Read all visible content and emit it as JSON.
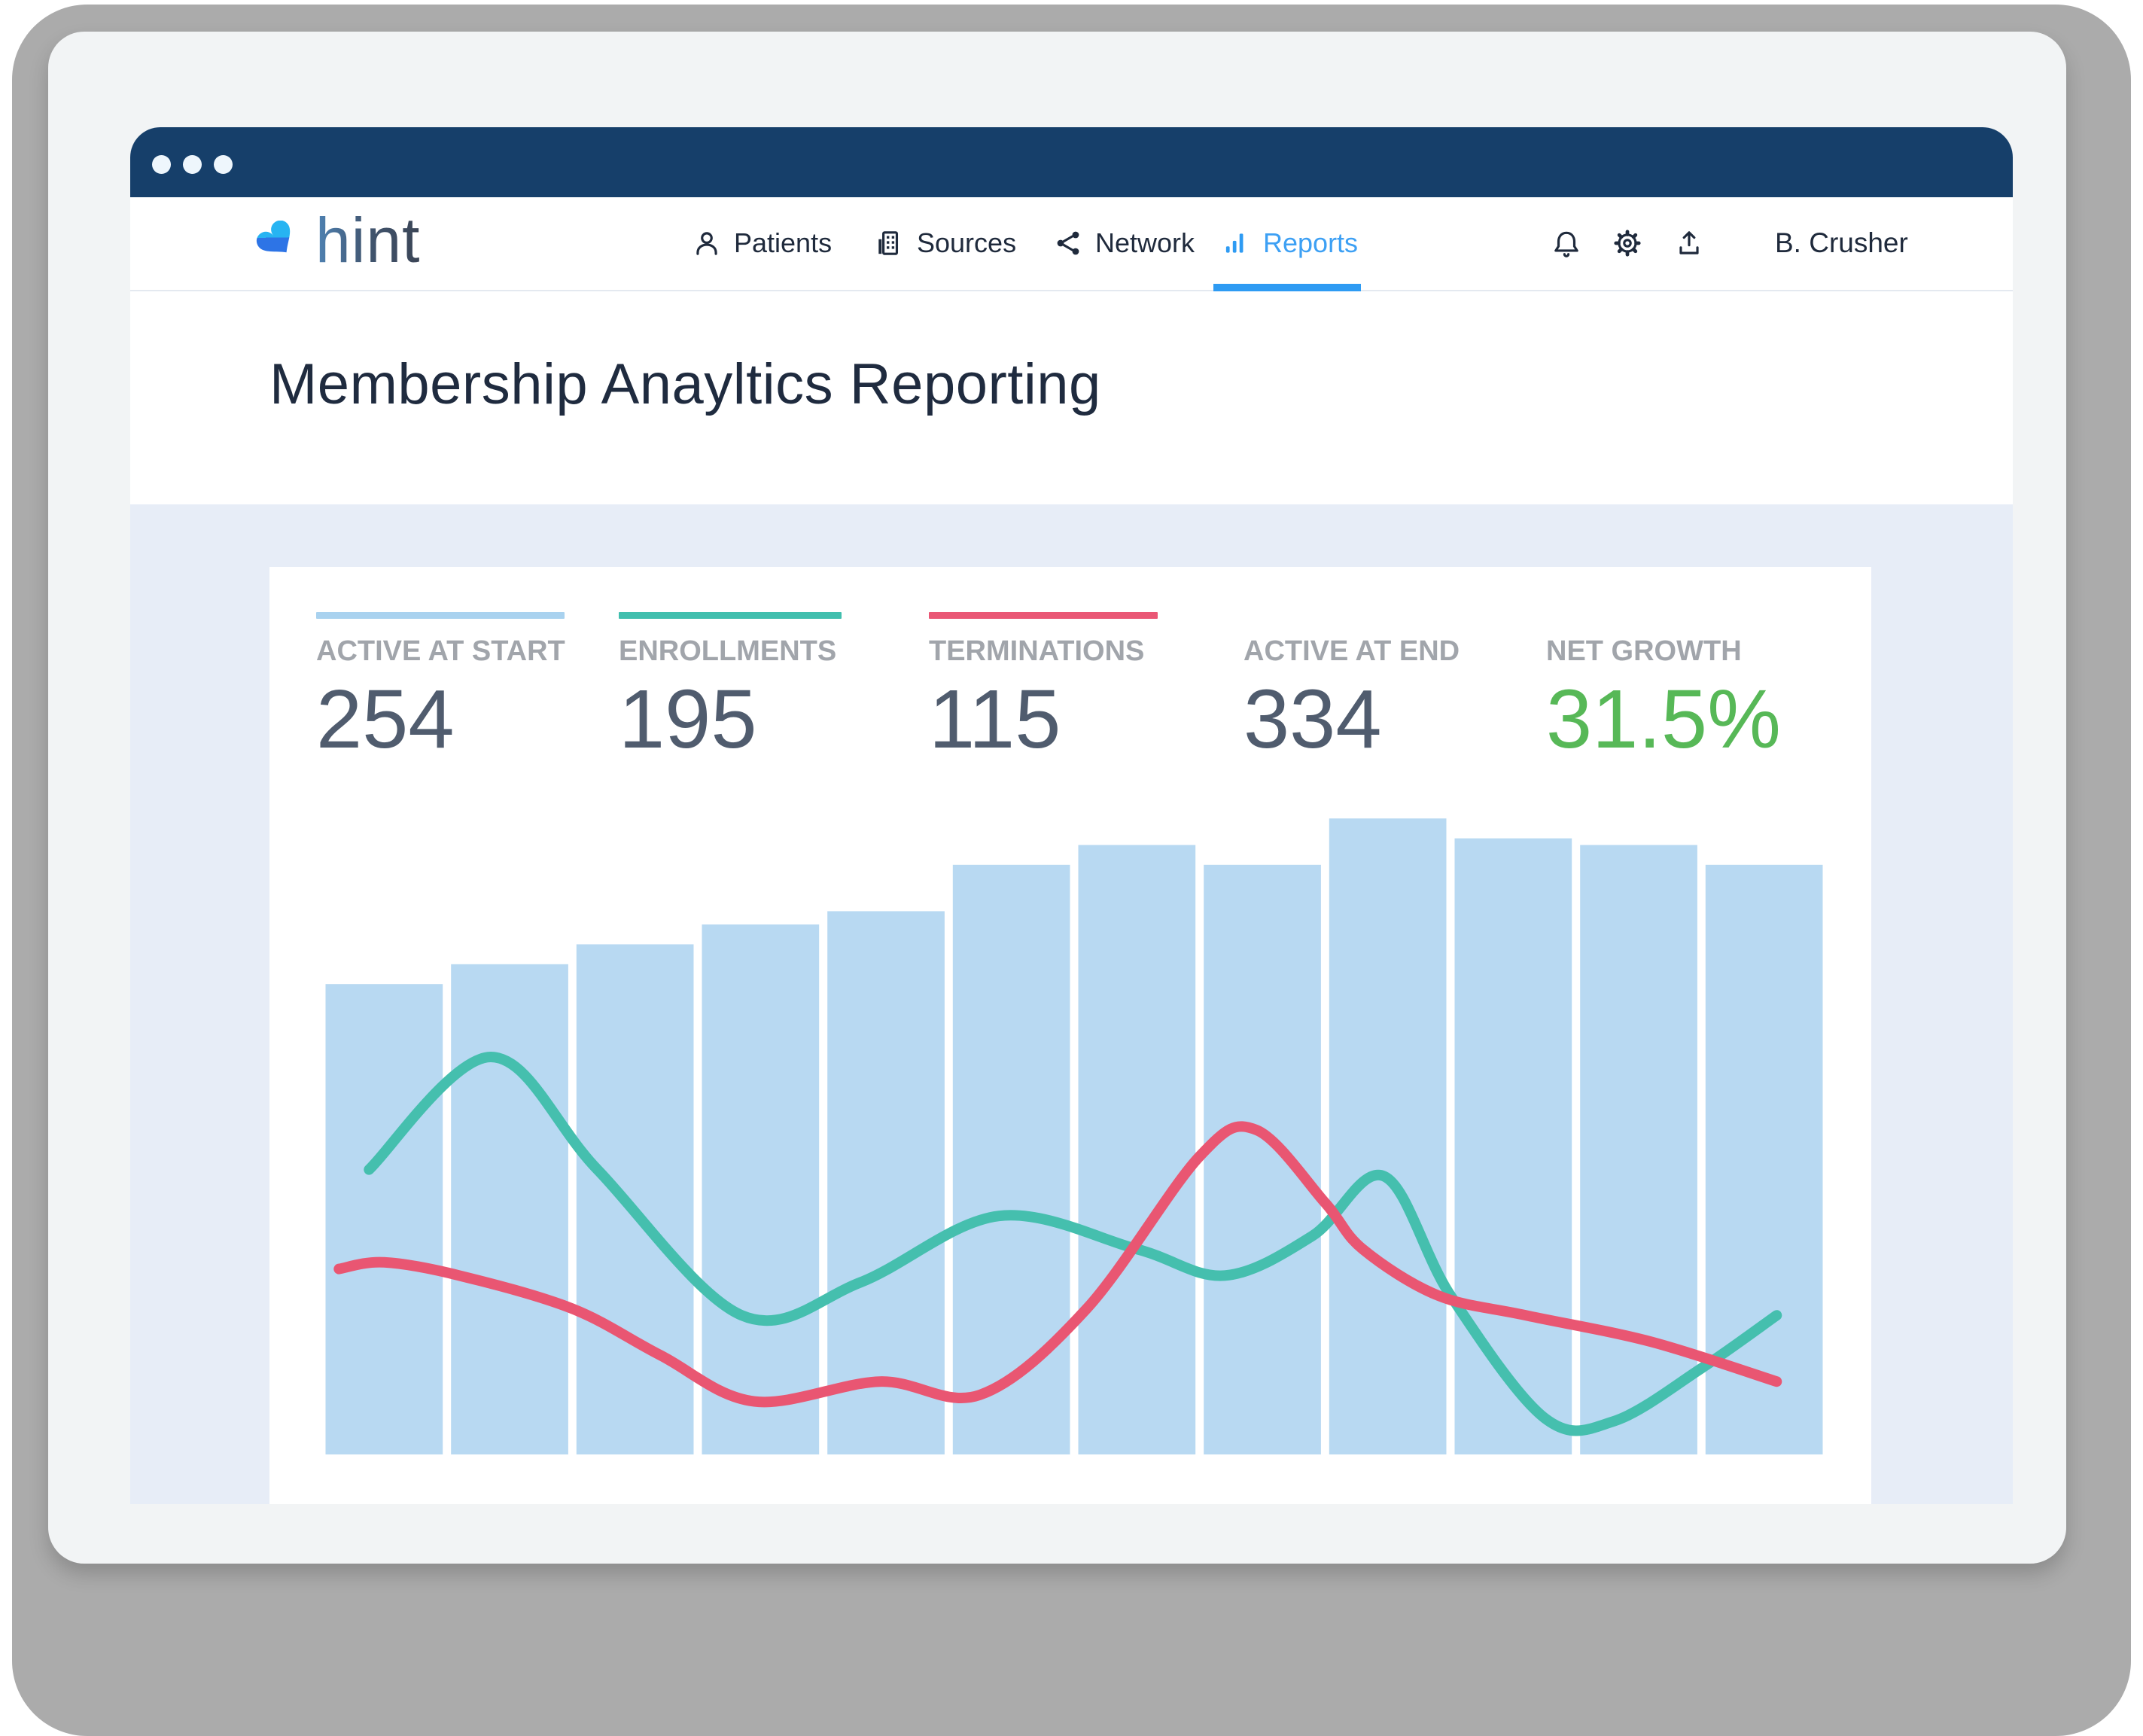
{
  "window": {
    "dots": 3
  },
  "nav": {
    "logo": {
      "text": "hint",
      "icon": "heart-logo-icon"
    },
    "items": [
      {
        "label": "Patients",
        "icon": "person-icon",
        "active": false
      },
      {
        "label": "Sources",
        "icon": "building-icon",
        "active": false
      },
      {
        "label": "Network",
        "icon": "share-network-icon",
        "active": false
      },
      {
        "label": "Reports",
        "icon": "bar-chart-icon",
        "active": true
      }
    ],
    "right_icons": [
      "bell-icon",
      "gear-icon",
      "upload-icon"
    ],
    "user_name": "B. Crusher",
    "active_accent_color": "#2e9bf3"
  },
  "page": {
    "title": "Membership Anayltics Reporting"
  },
  "stats": [
    {
      "label": "ACTIVE AT START",
      "value": "254",
      "accent_color": "#a9d2ef"
    },
    {
      "label": "ENROLLMENTS",
      "value": "195",
      "accent_color": "#41bfae"
    },
    {
      "label": "TERMINATIONS",
      "value": "115",
      "accent_color": "#ea5775"
    },
    {
      "label": "ACTIVE AT END",
      "value": "334",
      "accent_color": ""
    },
    {
      "label": "NET GROWTH",
      "value": "31.5%",
      "accent_color": "",
      "value_color": "#57b857"
    }
  ],
  "chart_data": {
    "type": "combo",
    "description": "12 light-blue bars (active membership by period) with two smoothed trend lines overlaid; no axis tick labels, gridlines or data labels are shown",
    "x_axis": {
      "tick_labels_visible": false,
      "n_bars": 12
    },
    "y_axis": {
      "tick_labels_visible": false,
      "units": "relative height, % of plot area"
    },
    "grid": false,
    "legend": "color chips above the stat labels act as the legend",
    "bar_series": {
      "name": "active members",
      "color": "#b8d9f2",
      "values": [
        71,
        74,
        77,
        80,
        82,
        89,
        92,
        89,
        96,
        93,
        92,
        89
      ]
    },
    "line_series": [
      {
        "name": "enrollments trend",
        "color": "#45bfae",
        "points": [
          [
            0.38,
            43
          ],
          [
            1.35,
            60
          ],
          [
            2.2,
            43
          ],
          [
            3.35,
            21
          ],
          [
            4.3,
            26
          ],
          [
            5.4,
            36
          ],
          [
            6.5,
            31
          ],
          [
            7.2,
            27
          ],
          [
            7.9,
            33
          ],
          [
            8.47,
            42
          ],
          [
            9.0,
            24
          ],
          [
            9.75,
            5.5
          ],
          [
            10.3,
            5
          ],
          [
            11.0,
            13
          ],
          [
            11.6,
            21
          ]
        ]
      },
      {
        "name": "terminations trend",
        "color": "#e95672",
        "points": [
          [
            0.14,
            28
          ],
          [
            0.5,
            29
          ],
          [
            1.1,
            27
          ],
          [
            2.0,
            22
          ],
          [
            2.7,
            15
          ],
          [
            3.45,
            8
          ],
          [
            4.45,
            11
          ],
          [
            5.25,
            9
          ],
          [
            6.1,
            22
          ],
          [
            7.0,
            45
          ],
          [
            7.45,
            49
          ],
          [
            8.0,
            38
          ],
          [
            8.3,
            31
          ],
          [
            8.9,
            24
          ],
          [
            9.6,
            21
          ],
          [
            10.6,
            17
          ],
          [
            11.6,
            11
          ]
        ]
      }
    ]
  },
  "colors": {
    "device_background": "#ababab",
    "bezel": "#f2f4f5",
    "titlebar": "#163f6a",
    "content_band": "#e7edf7",
    "nav_text": "#1f2a3c",
    "stat_label": "#a1a5ab",
    "stat_value": "#505c6e",
    "net_growth_green": "#57b857"
  }
}
